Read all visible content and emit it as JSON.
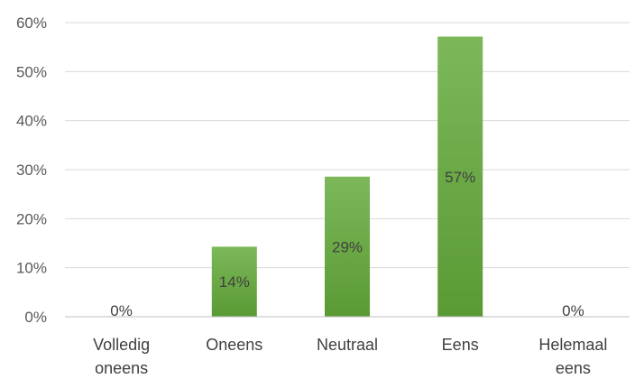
{
  "chart_data": {
    "type": "bar",
    "categories": [
      [
        "Volledig",
        "oneens"
      ],
      [
        "Oneens"
      ],
      [
        "Neutraal"
      ],
      [
        "Eens"
      ],
      [
        "Helemaal",
        "eens"
      ]
    ],
    "values": [
      0,
      14.29,
      28.57,
      57.14,
      0
    ],
    "data_labels": [
      "0%",
      "14%",
      "29%",
      "57%",
      "0%"
    ],
    "yticks": [
      "0%",
      "10%",
      "20%",
      "30%",
      "40%",
      "50%",
      "60%"
    ],
    "ylim": [
      0,
      60
    ],
    "grid": true,
    "title": "",
    "xlabel": "",
    "ylabel": "",
    "colors": {
      "bar_top": "#7cb85a",
      "bar_bottom": "#5a9a34",
      "grid": "#d9d9d9"
    }
  }
}
